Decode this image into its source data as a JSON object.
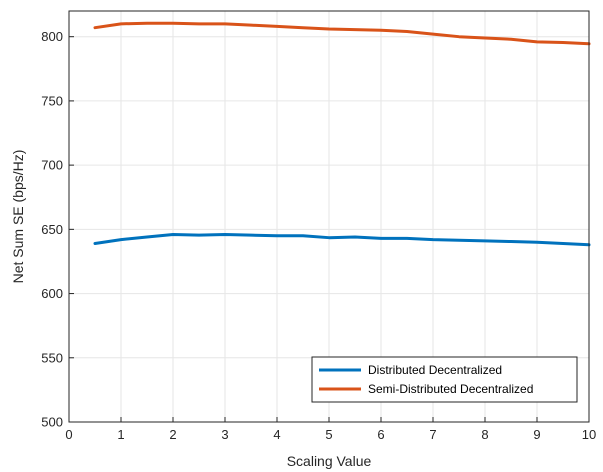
{
  "chart_data": {
    "type": "line",
    "title": "",
    "xlabel": "Scaling Value",
    "ylabel": "Net Sum SE (bps/Hz)",
    "xlim": [
      0,
      10
    ],
    "ylim": [
      500,
      820
    ],
    "xticks": [
      0,
      1,
      2,
      3,
      4,
      5,
      6,
      7,
      8,
      9,
      10
    ],
    "yticks": [
      500,
      550,
      600,
      650,
      700,
      750,
      800
    ],
    "grid": true,
    "legend_position": "bottom-right",
    "x": [
      0.5,
      1,
      1.5,
      2,
      2.5,
      3,
      3.5,
      4,
      4.5,
      5,
      5.5,
      6,
      6.5,
      7,
      7.5,
      8,
      8.5,
      9,
      9.5,
      10
    ],
    "series": [
      {
        "name": "Distributed Decentralized",
        "color": "#0072BD",
        "values": [
          639,
          642,
          644,
          646,
          645.5,
          646,
          645.5,
          645,
          645,
          643.5,
          644,
          643,
          643,
          642,
          641.5,
          641,
          640.5,
          640,
          639,
          638
        ]
      },
      {
        "name": "Semi-Distributed Decentralized",
        "color": "#D95319",
        "values": [
          807,
          810,
          810.5,
          810.5,
          810,
          810,
          809,
          808,
          807,
          806,
          805.5,
          805,
          804,
          802,
          800,
          799,
          798,
          796,
          795.5,
          794.5
        ]
      }
    ]
  }
}
